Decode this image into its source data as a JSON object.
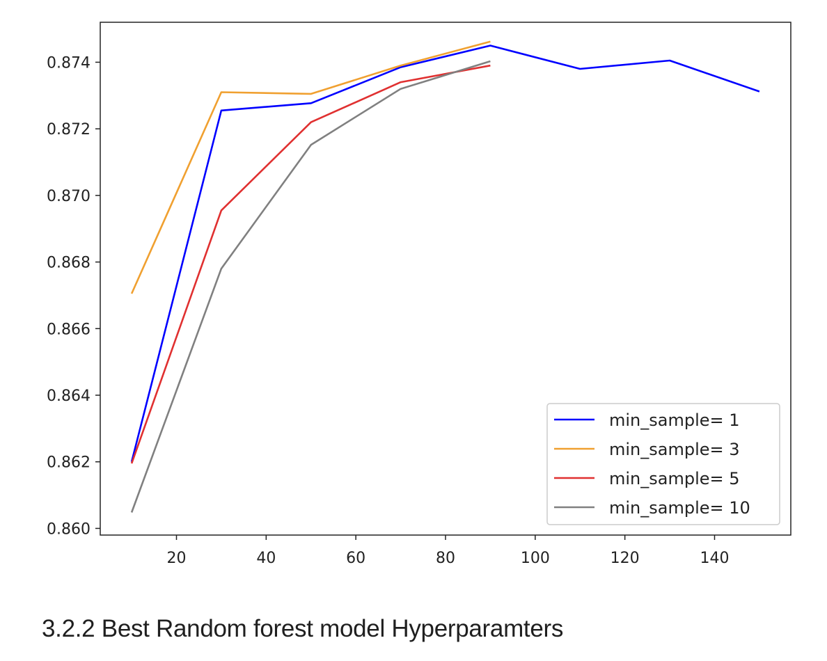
{
  "chart_data": {
    "type": "line",
    "title": "",
    "xlabel": "",
    "ylabel": "",
    "xlim": [
      3,
      157
    ],
    "ylim": [
      0.8598,
      0.8752
    ],
    "x_ticks": [
      20,
      40,
      60,
      80,
      100,
      120,
      140
    ],
    "y_ticks": [
      0.86,
      0.862,
      0.864,
      0.866,
      0.868,
      0.87,
      0.872,
      0.874
    ],
    "x_tick_labels": [
      "20",
      "40",
      "60",
      "80",
      "100",
      "120",
      "140"
    ],
    "y_tick_labels": [
      "0.860",
      "0.862",
      "0.864",
      "0.866",
      "0.868",
      "0.870",
      "0.872",
      "0.874"
    ],
    "grid": false,
    "legend_position": "lower-right",
    "series": [
      {
        "name": "min_sample= 1",
        "color": "#0000ff",
        "x": [
          10,
          30,
          50,
          70,
          90,
          110,
          130,
          150
        ],
        "y": [
          0.862,
          0.87255,
          0.87277,
          0.87385,
          0.8745,
          0.8738,
          0.87405,
          0.87312
        ]
      },
      {
        "name": "min_sample= 3",
        "color": "#f0a030",
        "x": [
          10,
          30,
          50,
          70,
          90
        ],
        "y": [
          0.86705,
          0.8731,
          0.87305,
          0.8739,
          0.87462
        ]
      },
      {
        "name": "min_sample= 5",
        "color": "#e03030",
        "x": [
          10,
          30,
          50,
          70,
          90
        ],
        "y": [
          0.86195,
          0.86955,
          0.8722,
          0.8734,
          0.8739
        ]
      },
      {
        "name": "min_sample= 10",
        "color": "#808080",
        "x": [
          10,
          30,
          50,
          70,
          90
        ],
        "y": [
          0.86048,
          0.8678,
          0.87152,
          0.8732,
          0.87403
        ]
      }
    ]
  },
  "heading": "3.2.2 Best Random forest model Hyperparamters"
}
